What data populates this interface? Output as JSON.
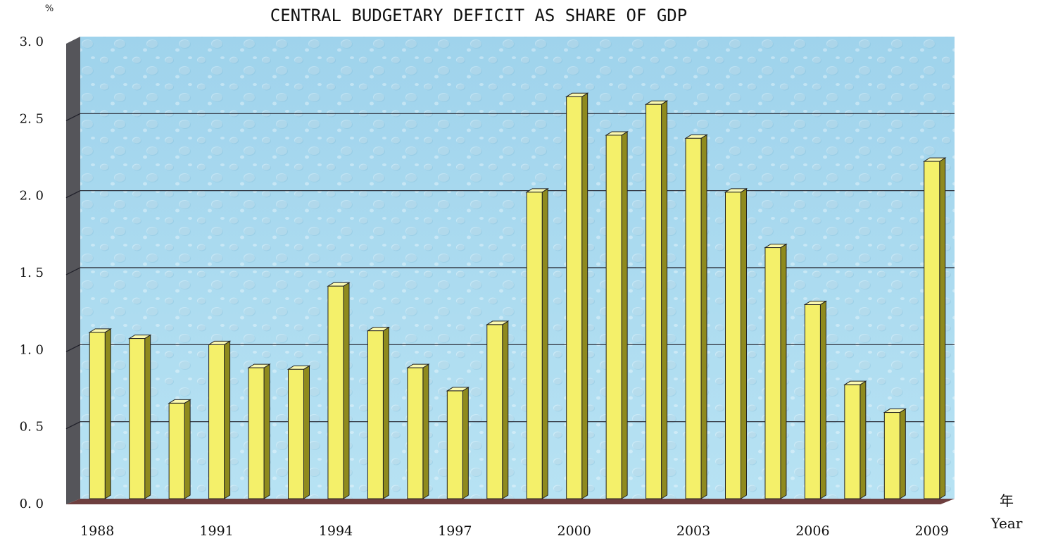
{
  "chart_data": {
    "type": "bar",
    "title": "CENTRAL BUDGETARY DEFICIT AS SHARE OF GDP",
    "ylabel": "%",
    "xlabel_cn": "年",
    "xlabel": "Year",
    "ylim": [
      0,
      3.0
    ],
    "yticks": [
      "0. 0",
      "0. 5",
      "1. 0",
      "1. 5",
      "2. 0",
      "2. 5",
      "3. 0"
    ],
    "grid": true,
    "categories": [
      "1988",
      "1989",
      "1990",
      "1991",
      "1992",
      "1993",
      "1994",
      "1995",
      "1996",
      "1997",
      "1998",
      "1999",
      "2000",
      "2001",
      "2002",
      "2003",
      "2004",
      "2005",
      "2006",
      "2007",
      "2008",
      "2009"
    ],
    "x_tick_labels": [
      "1988",
      "",
      "",
      "1991",
      "",
      "",
      "1994",
      "",
      "",
      "1997",
      "",
      "",
      "2000",
      "",
      "",
      "2003",
      "",
      "",
      "2006",
      "",
      "",
      "2009"
    ],
    "values": [
      1.08,
      1.04,
      0.62,
      1.0,
      0.85,
      0.84,
      1.38,
      1.09,
      0.85,
      0.7,
      1.13,
      1.99,
      2.61,
      2.36,
      2.56,
      2.34,
      1.99,
      1.63,
      1.26,
      0.74,
      0.56,
      2.19
    ],
    "colors": {
      "bar_front": "#f4f06a",
      "bar_side": "#8f8a1e",
      "bar_top": "#fbf9b0",
      "plot_bg": "#a8d8ee",
      "wall_side": "#55555a",
      "floor": "#6e3f3f",
      "gridline": "#1f1f28"
    }
  }
}
